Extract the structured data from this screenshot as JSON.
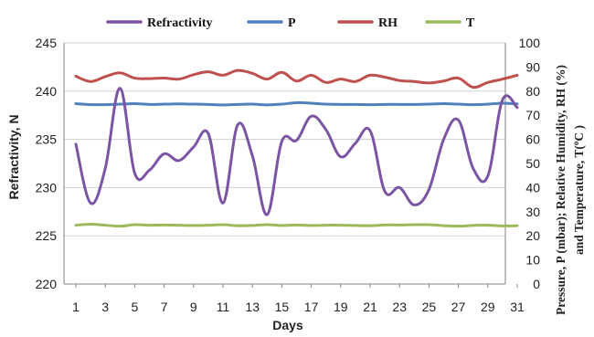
{
  "chart_data": {
    "type": "line",
    "xlabel": "Days",
    "ylabel": "Refractivity, N",
    "y2label_line1": "Pressure, P (mbar); Relative Humidity, RH (%)",
    "y2label_line2_prefix": "and Temperature, T(",
    "y2label_line2_sup": "o",
    "y2label_line2_suffix": "C )",
    "x": [
      1,
      2,
      3,
      4,
      5,
      6,
      7,
      8,
      9,
      10,
      11,
      12,
      13,
      14,
      15,
      16,
      17,
      18,
      19,
      20,
      21,
      22,
      23,
      24,
      25,
      26,
      27,
      28,
      29,
      30,
      31
    ],
    "xlim": [
      1,
      31
    ],
    "xticks": [
      "1",
      "3",
      "5",
      "7",
      "9",
      "11",
      "13",
      "15",
      "17",
      "19",
      "21",
      "23",
      "25",
      "27",
      "29",
      "31"
    ],
    "ylim": [
      220,
      245
    ],
    "yticks": [
      "220",
      "225",
      "230",
      "235",
      "240",
      "245"
    ],
    "y2lim": [
      0,
      100
    ],
    "y2ticks": [
      "0",
      "10",
      "20",
      "30",
      "40",
      "50",
      "60",
      "70",
      "80",
      "90",
      "100"
    ],
    "grid": true,
    "legend_position": "top",
    "series": [
      {
        "name": "Refractivity",
        "axis": "left",
        "color": "#7b55a4",
        "values": [
          234.5,
          228.4,
          232.0,
          240.3,
          231.5,
          231.8,
          233.5,
          232.8,
          234.2,
          235.6,
          228.4,
          236.5,
          233.3,
          227.2,
          234.8,
          234.9,
          237.4,
          236.0,
          233.2,
          234.6,
          235.9,
          229.6,
          230.0,
          228.2,
          229.8,
          235.0,
          237.0,
          232.0,
          231.2,
          239.1,
          238.3
        ]
      },
      {
        "name": "P",
        "axis": "right",
        "color": "#4f81bd",
        "values": [
          74.8,
          74.4,
          74.4,
          74.6,
          74.8,
          74.5,
          74.6,
          74.7,
          74.6,
          74.5,
          74.3,
          74.5,
          74.6,
          74.3,
          74.6,
          75.2,
          75.0,
          74.6,
          74.5,
          74.5,
          74.4,
          74.5,
          74.5,
          74.5,
          74.6,
          74.8,
          74.6,
          74.4,
          74.6,
          75.0,
          74.7
        ]
      },
      {
        "name": "RH",
        "axis": "right",
        "color": "#c0504d",
        "values": [
          86.2,
          84.0,
          86.0,
          87.6,
          85.4,
          85.2,
          85.4,
          85.0,
          86.8,
          88.0,
          86.6,
          88.6,
          87.4,
          85.0,
          87.8,
          84.2,
          86.6,
          83.6,
          85.0,
          84.0,
          86.6,
          85.8,
          84.4,
          84.0,
          83.4,
          84.2,
          85.4,
          81.6,
          83.6,
          85.0,
          86.6
        ]
      },
      {
        "name": "T",
        "axis": "right",
        "color": "#9bbb59",
        "values": [
          24.4,
          24.8,
          24.4,
          24.0,
          24.6,
          24.4,
          24.5,
          24.4,
          24.3,
          24.4,
          24.6,
          24.2,
          24.3,
          24.6,
          24.3,
          24.5,
          24.3,
          24.4,
          24.4,
          24.3,
          24.2,
          24.5,
          24.5,
          24.6,
          24.6,
          24.2,
          24.0,
          24.3,
          24.4,
          24.1,
          24.2
        ]
      }
    ]
  }
}
